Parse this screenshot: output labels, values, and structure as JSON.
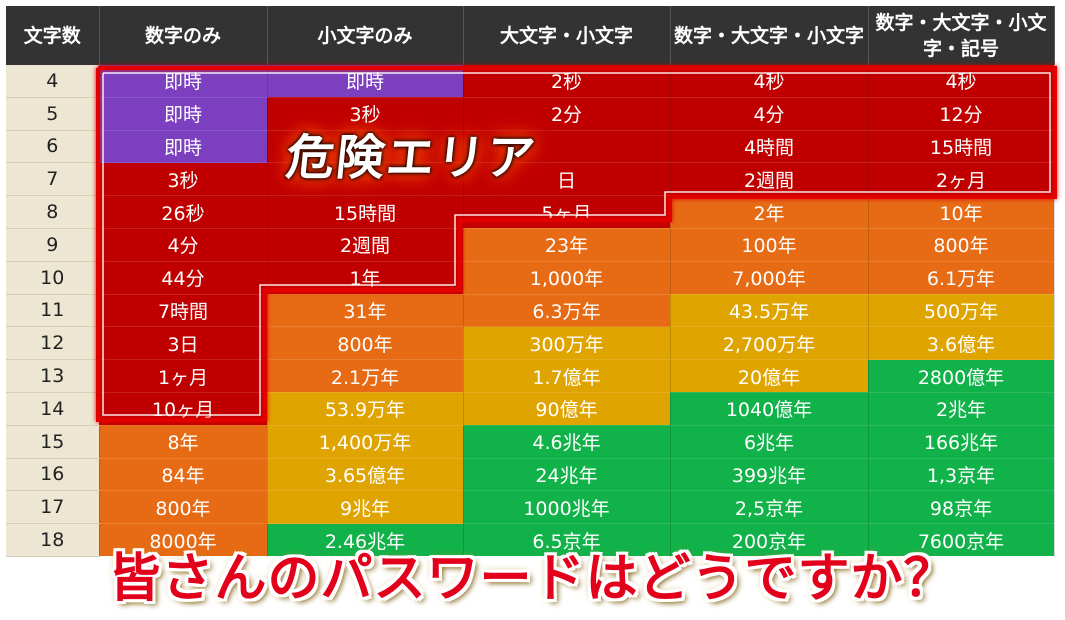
{
  "colors": {
    "header_bg": "#333333",
    "rowhead_bg": "#ece6d2",
    "purple": "#7c3fc0",
    "red": "#c00000",
    "orange": "#e66b14",
    "amber": "#e0a400",
    "green": "#12b24a",
    "frame": "#e00000",
    "caption": "#e3001b"
  },
  "table": {
    "columns": [
      "文字数",
      "数字のみ",
      "小文字のみ",
      "大文字・小文字",
      "数字・大文字・小文字",
      "数字・大文字・小文字・記号"
    ],
    "rows": [
      {
        "len": "4",
        "cells": [
          [
            "即時",
            "purple"
          ],
          [
            "即時",
            "purple"
          ],
          [
            "2秒",
            "red"
          ],
          [
            "4秒",
            "red"
          ],
          [
            "4秒",
            "red"
          ]
        ]
      },
      {
        "len": "5",
        "cells": [
          [
            "即時",
            "purple"
          ],
          [
            "3秒",
            "red"
          ],
          [
            "2分",
            "red"
          ],
          [
            "4分",
            "red"
          ],
          [
            "12分",
            "red"
          ]
        ]
      },
      {
        "len": "6",
        "cells": [
          [
            "即時",
            "purple"
          ],
          [
            "",
            "red"
          ],
          [
            "",
            "red"
          ],
          [
            "4時間",
            "red"
          ],
          [
            "15時間",
            "red"
          ]
        ]
      },
      {
        "len": "7",
        "cells": [
          [
            "3秒",
            "red"
          ],
          [
            "",
            "red"
          ],
          [
            "日",
            "red"
          ],
          [
            "2週間",
            "red"
          ],
          [
            "2ヶ月",
            "red"
          ]
        ]
      },
      {
        "len": "8",
        "cells": [
          [
            "26秒",
            "red"
          ],
          [
            "15時間",
            "red"
          ],
          [
            "5ヶ月",
            "red"
          ],
          [
            "2年",
            "orange"
          ],
          [
            "10年",
            "orange"
          ]
        ]
      },
      {
        "len": "9",
        "cells": [
          [
            "4分",
            "red"
          ],
          [
            "2週間",
            "red"
          ],
          [
            "23年",
            "orange"
          ],
          [
            "100年",
            "orange"
          ],
          [
            "800年",
            "orange"
          ]
        ]
      },
      {
        "len": "10",
        "cells": [
          [
            "44分",
            "red"
          ],
          [
            "1年",
            "red"
          ],
          [
            "1,000年",
            "orange"
          ],
          [
            "7,000年",
            "orange"
          ],
          [
            "6.1万年",
            "orange"
          ]
        ]
      },
      {
        "len": "11",
        "cells": [
          [
            "7時間",
            "red"
          ],
          [
            "31年",
            "orange"
          ],
          [
            "6.3万年",
            "orange"
          ],
          [
            "43.5万年",
            "amber"
          ],
          [
            "500万年",
            "amber"
          ]
        ]
      },
      {
        "len": "12",
        "cells": [
          [
            "3日",
            "red"
          ],
          [
            "800年",
            "orange"
          ],
          [
            "300万年",
            "amber"
          ],
          [
            "2,700万年",
            "amber"
          ],
          [
            "3.6億年",
            "amber"
          ]
        ]
      },
      {
        "len": "13",
        "cells": [
          [
            "1ヶ月",
            "red"
          ],
          [
            "2.1万年",
            "orange"
          ],
          [
            "1.7億年",
            "amber"
          ],
          [
            "20億年",
            "amber"
          ],
          [
            "2800億年",
            "green"
          ]
        ]
      },
      {
        "len": "14",
        "cells": [
          [
            "10ヶ月",
            "red"
          ],
          [
            "53.9万年",
            "amber"
          ],
          [
            "90億年",
            "amber"
          ],
          [
            "1040億年",
            "green"
          ],
          [
            "2兆年",
            "green"
          ]
        ]
      },
      {
        "len": "15",
        "cells": [
          [
            "8年",
            "orange"
          ],
          [
            "1,400万年",
            "amber"
          ],
          [
            "4.6兆年",
            "green"
          ],
          [
            "6兆年",
            "green"
          ],
          [
            "166兆年",
            "green"
          ]
        ]
      },
      {
        "len": "16",
        "cells": [
          [
            "84年",
            "orange"
          ],
          [
            "3.65億年",
            "amber"
          ],
          [
            "24兆年",
            "green"
          ],
          [
            "399兆年",
            "green"
          ],
          [
            "1,3京年",
            "green"
          ]
        ]
      },
      {
        "len": "17",
        "cells": [
          [
            "800年",
            "orange"
          ],
          [
            "9兆年",
            "amber"
          ],
          [
            "1000兆年",
            "green"
          ],
          [
            "2,5京年",
            "green"
          ],
          [
            "98京年",
            "green"
          ]
        ]
      },
      {
        "len": "18",
        "cells": [
          [
            "8000年",
            "orange"
          ],
          [
            "2.46兆年",
            "green"
          ],
          [
            "6.5京年",
            "green"
          ],
          [
            "200京年",
            "green"
          ],
          [
            "7600京年",
            "green"
          ]
        ]
      }
    ]
  },
  "danger_label": "危険エリア",
  "caption": "皆さんのパスワードはどうですか？"
}
